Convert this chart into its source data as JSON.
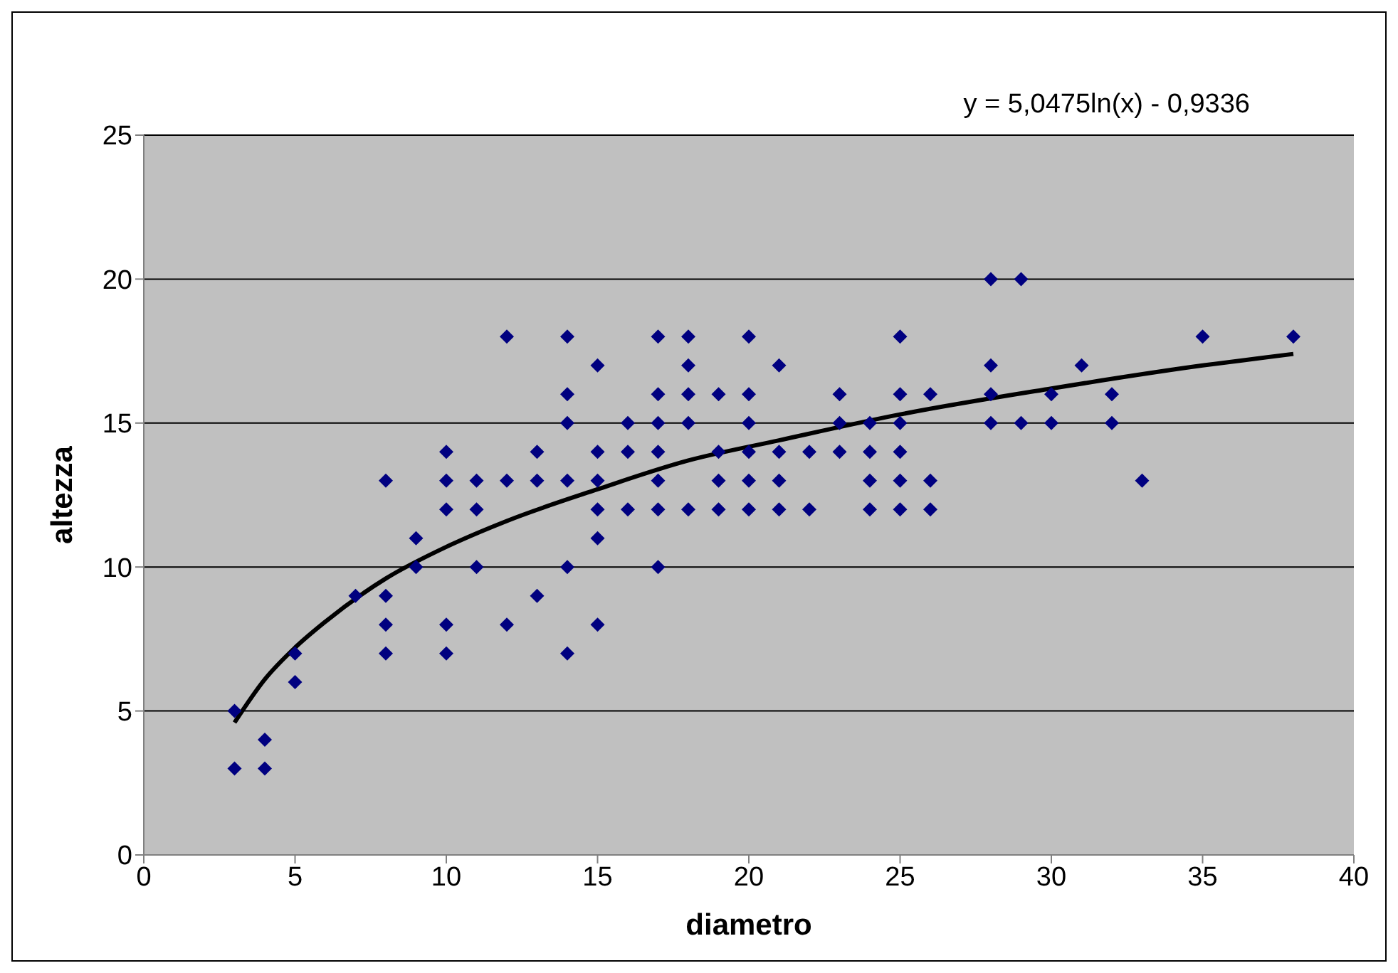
{
  "chart_data": {
    "type": "scatter",
    "xlabel": "diametro",
    "ylabel": "altezza",
    "annotations": [
      "y = 5,0475ln(x)  - 0,9336"
    ],
    "xlim": [
      0,
      40
    ],
    "xticks": [
      0,
      5,
      10,
      15,
      20,
      25,
      30,
      35,
      40
    ],
    "ylim": [
      0,
      25
    ],
    "yticks": [
      0,
      5,
      10,
      15,
      20,
      25
    ],
    "grid": "y",
    "legend": false,
    "marker": "diamond",
    "series": [
      {
        "color": "#000080",
        "x": [
          3,
          3,
          4,
          4,
          5,
          5,
          7,
          8,
          8,
          8,
          8,
          9,
          9,
          10,
          10,
          10,
          10,
          10,
          11,
          11,
          11,
          12,
          12,
          12,
          13,
          13,
          13,
          14,
          14,
          14,
          14,
          14,
          14,
          15,
          15,
          15,
          15,
          15,
          15,
          16,
          16,
          16,
          17,
          17,
          17,
          17,
          17,
          17,
          17,
          18,
          18,
          18,
          18,
          18,
          19,
          19,
          19,
          19,
          20,
          20,
          20,
          20,
          20,
          20,
          21,
          21,
          21,
          21,
          22,
          22,
          23,
          23,
          23,
          24,
          24,
          24,
          24,
          25,
          25,
          25,
          25,
          25,
          25,
          26,
          26,
          26,
          28,
          28,
          28,
          28,
          29,
          29,
          30,
          30,
          31,
          32,
          32,
          33,
          35,
          38
        ],
        "values": [
          5,
          3,
          4,
          3,
          7,
          6,
          9,
          13,
          9,
          8,
          7,
          11,
          10,
          14,
          13,
          12,
          8,
          7,
          13,
          12,
          10,
          18,
          13,
          8,
          14,
          13,
          9,
          18,
          16,
          15,
          13,
          10,
          7,
          17,
          14,
          13,
          12,
          11,
          8,
          15,
          14,
          12,
          18,
          16,
          15,
          14,
          13,
          12,
          10,
          18,
          17,
          16,
          15,
          12,
          16,
          14,
          13,
          12,
          18,
          16,
          15,
          14,
          13,
          12,
          17,
          14,
          13,
          12,
          14,
          12,
          16,
          15,
          14,
          15,
          14,
          13,
          12,
          18,
          16,
          15,
          14,
          13,
          12,
          16,
          13,
          12,
          20,
          17,
          16,
          15,
          20,
          15,
          16,
          15,
          17,
          16,
          15,
          13,
          18,
          18
        ]
      },
      {
        "type": "line",
        "color": "#000000",
        "marker": "none",
        "x": [
          3,
          4,
          5,
          6,
          8,
          10,
          12,
          15,
          18,
          21,
          25,
          30,
          35,
          38
        ],
        "values": [
          4.6,
          6.1,
          7.2,
          8.1,
          9.6,
          10.7,
          11.6,
          12.7,
          13.7,
          14.4,
          15.3,
          16.2,
          17.0,
          17.4
        ]
      }
    ]
  }
}
